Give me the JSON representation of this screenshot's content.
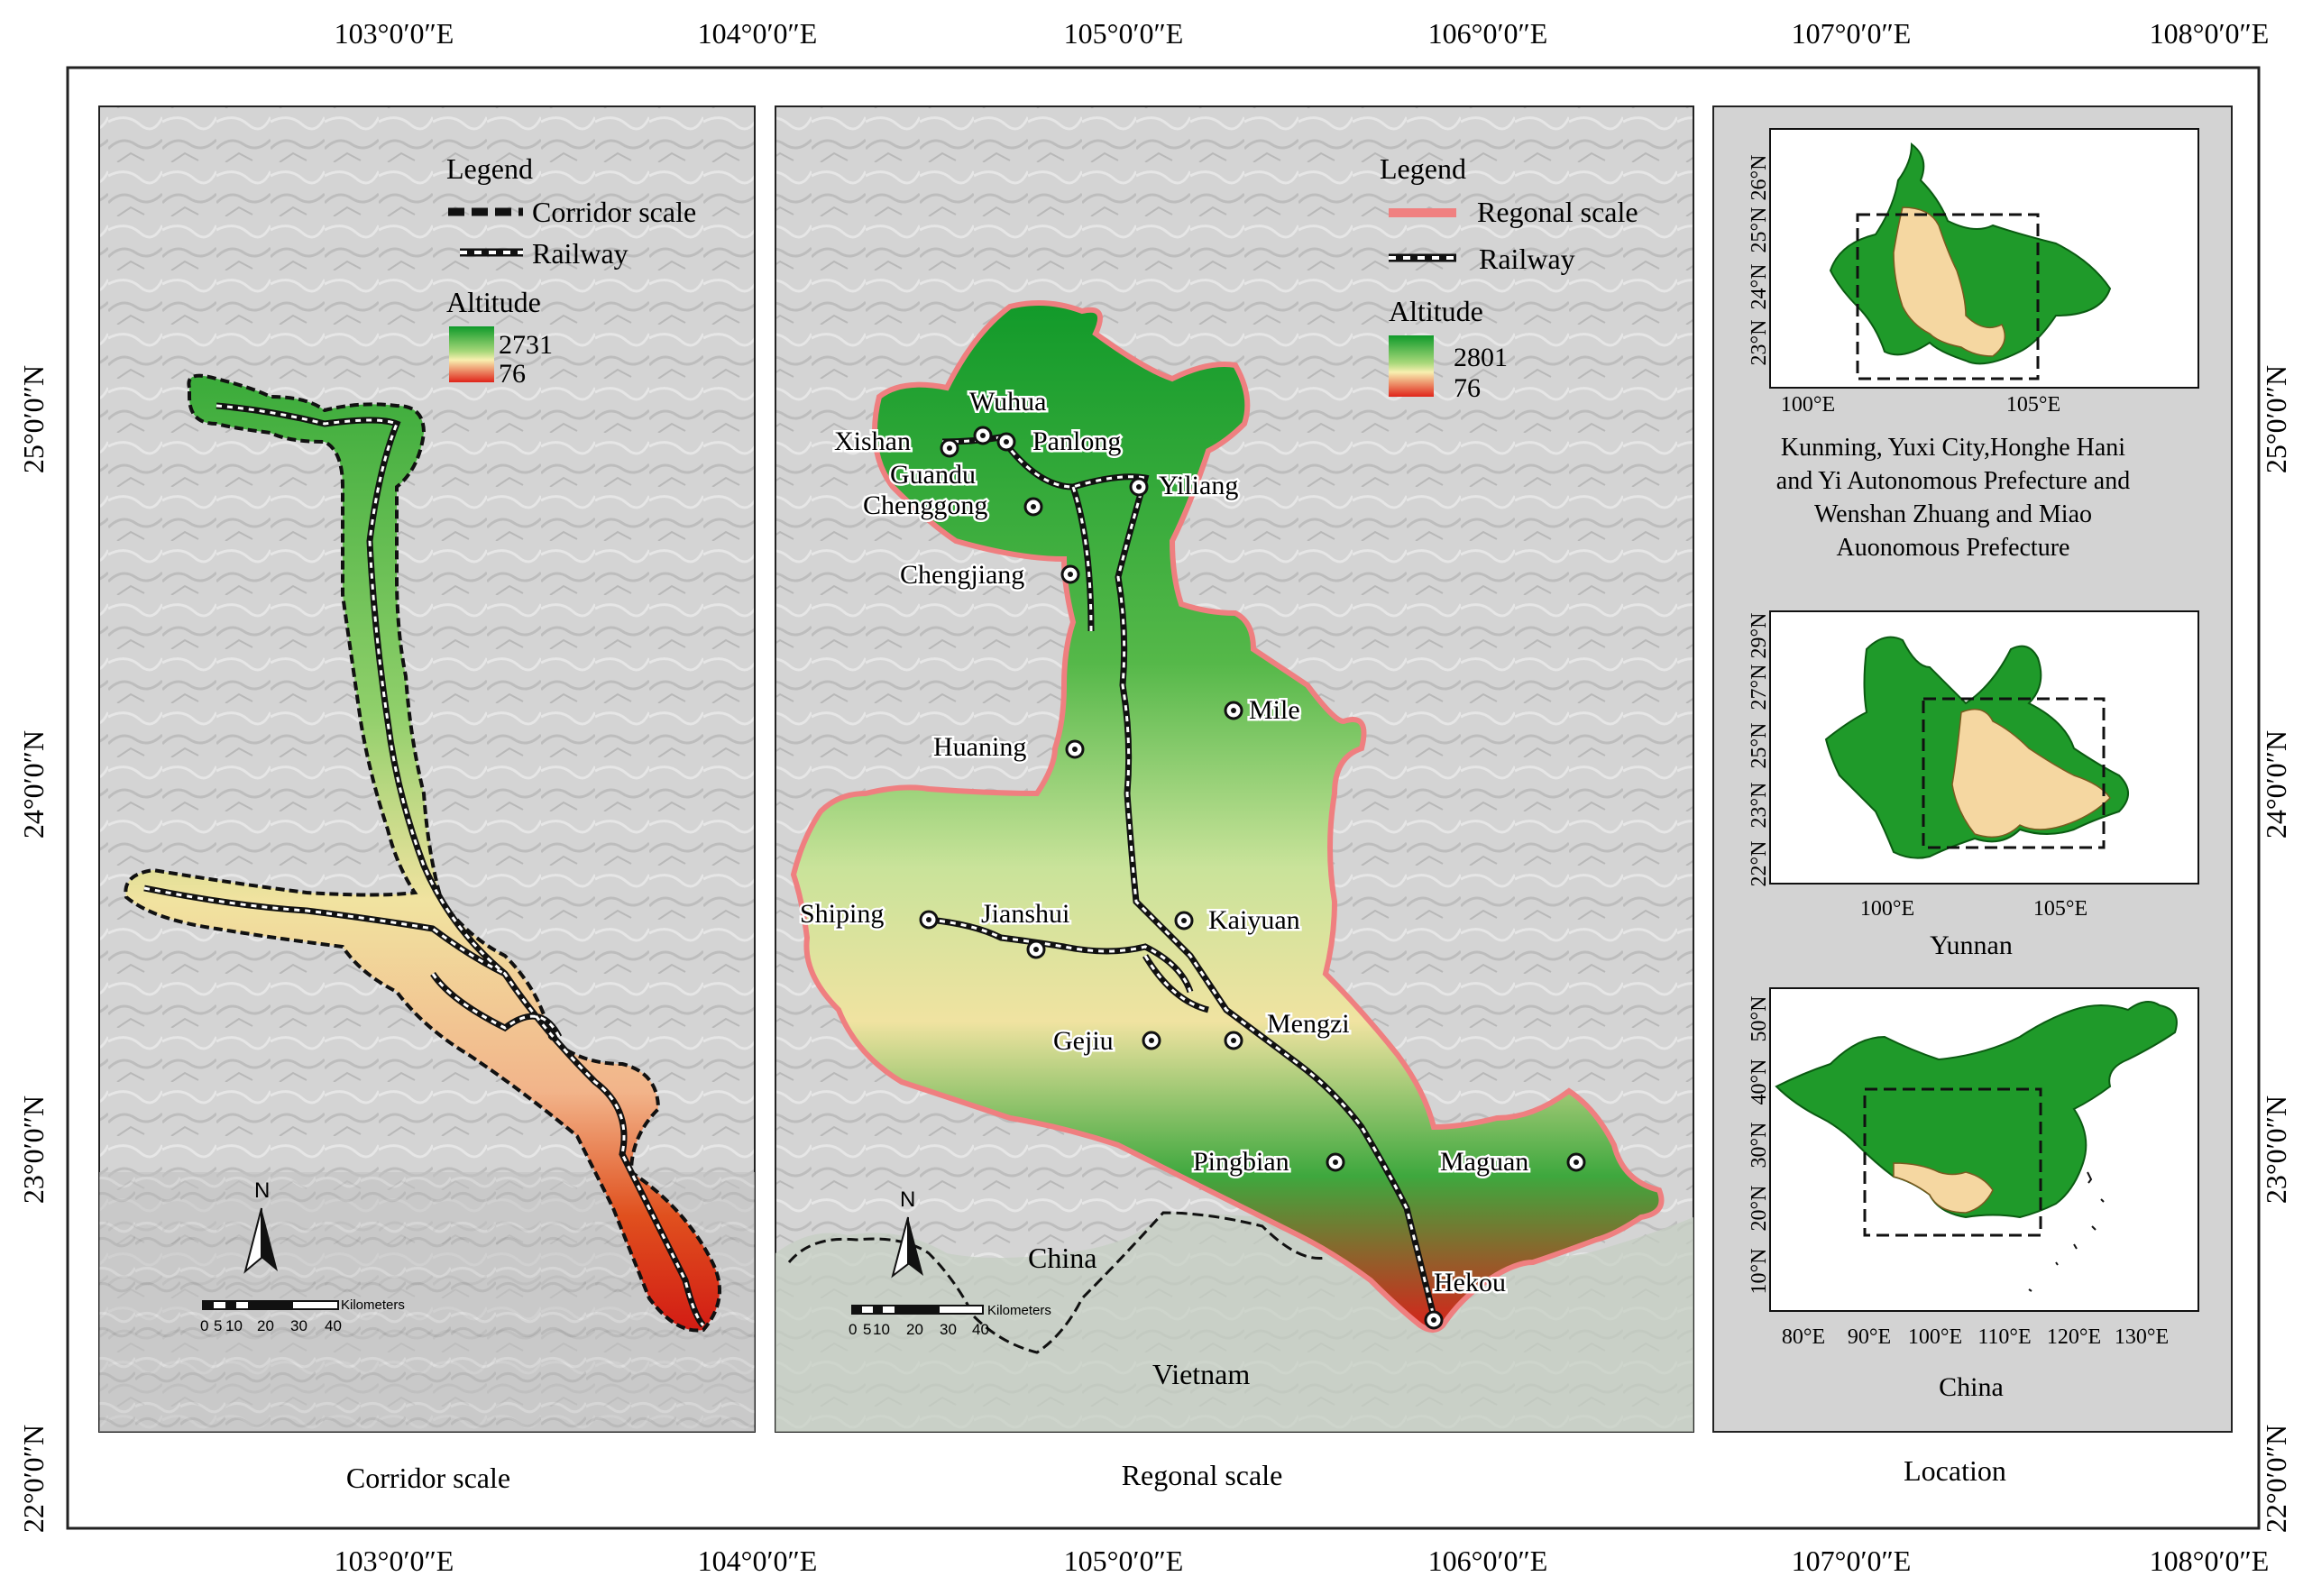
{
  "frame": {
    "top_lon_labels": [
      "103°0′0″E",
      "104°0′0″E",
      "105°0′0″E",
      "106°0′0″E",
      "107°0′0″E",
      "108°0′0″E"
    ],
    "bottom_lon_labels": [
      "103°0′0″E",
      "104°0′0″E",
      "105°0′0″E",
      "106°0′0″E",
      "107°0′0″E",
      "108°0′0″E"
    ],
    "left_lat_labels": [
      "25°0′0″N",
      "24°0′0″N",
      "23°0′0″N",
      "22°0′0″N"
    ],
    "right_lat_labels": [
      "25°0′0″N",
      "24°0′0″N",
      "23°0′0″N",
      "22°0′0″N"
    ]
  },
  "corridor_panel": {
    "caption": "Corridor scale",
    "legend": {
      "title": "Legend",
      "corridor_label": "Corridor scale",
      "railway_label": "Railway",
      "altitude_title": "Altitude",
      "alt_max": "2731",
      "alt_min": "76"
    },
    "north": "N",
    "scalebar": {
      "unit": "Kilometers",
      "ticks": [
        "0",
        "5",
        "10",
        "20",
        "30",
        "40"
      ]
    }
  },
  "regional_panel": {
    "caption": "Regonal scale",
    "legend": {
      "title": "Legend",
      "regional_label": "Regonal scale",
      "railway_label": "Railway",
      "altitude_title": "Altitude",
      "alt_max": "2801",
      "alt_min": "76"
    },
    "north": "N",
    "scalebar": {
      "unit": "Kilometers",
      "ticks": [
        "0",
        "5",
        "10",
        "20",
        "30",
        "40"
      ]
    },
    "cities": [
      "Wuhua",
      "Xishan",
      "Panlong",
      "Guandu",
      "Chenggong",
      "Yiliang",
      "Chengjiang",
      "Mile",
      "Huaning",
      "Shiping",
      "Jianshui",
      "Kaiyuan",
      "Gejiu",
      "Mengzi",
      "Pingbian",
      "Maguan",
      "Hekou"
    ],
    "country_labels": [
      "China",
      "Vietnam"
    ]
  },
  "location_panel": {
    "caption": "Location",
    "inset1": {
      "caption_lines": [
        "Kunming, Yuxi City,Honghe Hani",
        "and Yi Autonomous Prefecture and",
        "Wenshan Zhuang and Miao",
        "Auonomous Prefecture"
      ],
      "y_ticks": [
        "26°N",
        "25°N",
        "24°N",
        "23°N"
      ],
      "x_ticks": [
        "100°E",
        "105°E"
      ]
    },
    "inset2": {
      "caption": "Yunnan",
      "y_ticks": [
        "29°N",
        "27°N",
        "25°N",
        "23°N",
        "22°N"
      ],
      "x_ticks": [
        "100°E",
        "105°E"
      ]
    },
    "inset3": {
      "caption": "China",
      "y_ticks": [
        "50°N",
        "40°N",
        "30°N",
        "20°N",
        "10°N"
      ],
      "x_ticks": [
        "80°E",
        "90°E",
        "100°E",
        "110°E",
        "120°E",
        "130°E"
      ]
    }
  },
  "colors": {
    "green": "#1f9a2a",
    "tan": "#f5d7a1",
    "high_alt": "#12a12a",
    "low_alt": "#e0241a",
    "regional_outline": "#f08080",
    "hillshade": "#d2d2d2"
  }
}
